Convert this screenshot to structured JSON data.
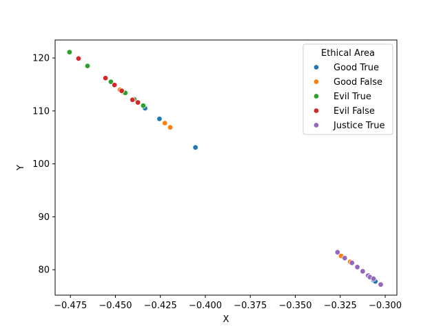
{
  "chart_data": {
    "type": "scatter",
    "title": "",
    "xlabel": "X",
    "ylabel": "Y",
    "xlim": [
      -0.4835,
      -0.2935
    ],
    "ylim": [
      75.2,
      123.4
    ],
    "xticks": [
      -0.475,
      -0.45,
      -0.425,
      -0.4,
      -0.375,
      -0.35,
      -0.325,
      -0.3
    ],
    "xtick_labels": [
      "−0.475",
      "−0.450",
      "−0.425",
      "−0.400",
      "−0.375",
      "−0.350",
      "−0.325",
      "−0.300"
    ],
    "yticks": [
      80,
      90,
      100,
      110,
      120
    ],
    "ytick_labels": [
      "80",
      "90",
      "100",
      "110",
      "120"
    ],
    "grid": false,
    "legend": {
      "title": "Ethical Area",
      "position": "top-right"
    },
    "series": [
      {
        "name": "Good True",
        "color": "#1f77b4",
        "points": [
          [
            -0.4335,
            110.5
          ],
          [
            -0.4255,
            108.5
          ],
          [
            -0.4055,
            103.1
          ],
          [
            -0.3065,
            78.0
          ],
          [
            -0.3055,
            77.8
          ]
        ]
      },
      {
        "name": "Good False",
        "color": "#ff7f0e",
        "points": [
          [
            -0.4475,
            114.0
          ],
          [
            -0.4455,
            113.5
          ],
          [
            -0.4225,
            107.7
          ],
          [
            -0.4195,
            106.9
          ],
          [
            -0.3245,
            82.6
          ],
          [
            -0.3195,
            81.5
          ],
          [
            -0.3125,
            79.8
          ]
        ]
      },
      {
        "name": "Evil True",
        "color": "#2ca02c",
        "points": [
          [
            -0.4755,
            121.1
          ],
          [
            -0.4655,
            118.5
          ],
          [
            -0.4525,
            115.5
          ],
          [
            -0.4445,
            113.4
          ],
          [
            -0.4395,
            112.2
          ],
          [
            -0.4345,
            111.0
          ]
        ]
      },
      {
        "name": "Evil False",
        "color": "#d62728",
        "points": [
          [
            -0.4705,
            119.9
          ],
          [
            -0.4555,
            116.2
          ],
          [
            -0.4505,
            114.9
          ],
          [
            -0.4465,
            113.8
          ],
          [
            -0.4405,
            112.1
          ],
          [
            -0.4375,
            111.6
          ]
        ]
      },
      {
        "name": "Justice True",
        "color": "#9467bd",
        "points": [
          [
            -0.3265,
            83.3
          ],
          [
            -0.3225,
            82.2
          ],
          [
            -0.3185,
            81.3
          ],
          [
            -0.3155,
            80.5
          ],
          [
            -0.3125,
            79.7
          ],
          [
            -0.3095,
            78.9
          ],
          [
            -0.3085,
            78.6
          ],
          [
            -0.3065,
            78.3
          ],
          [
            -0.3025,
            77.2
          ]
        ]
      }
    ]
  }
}
